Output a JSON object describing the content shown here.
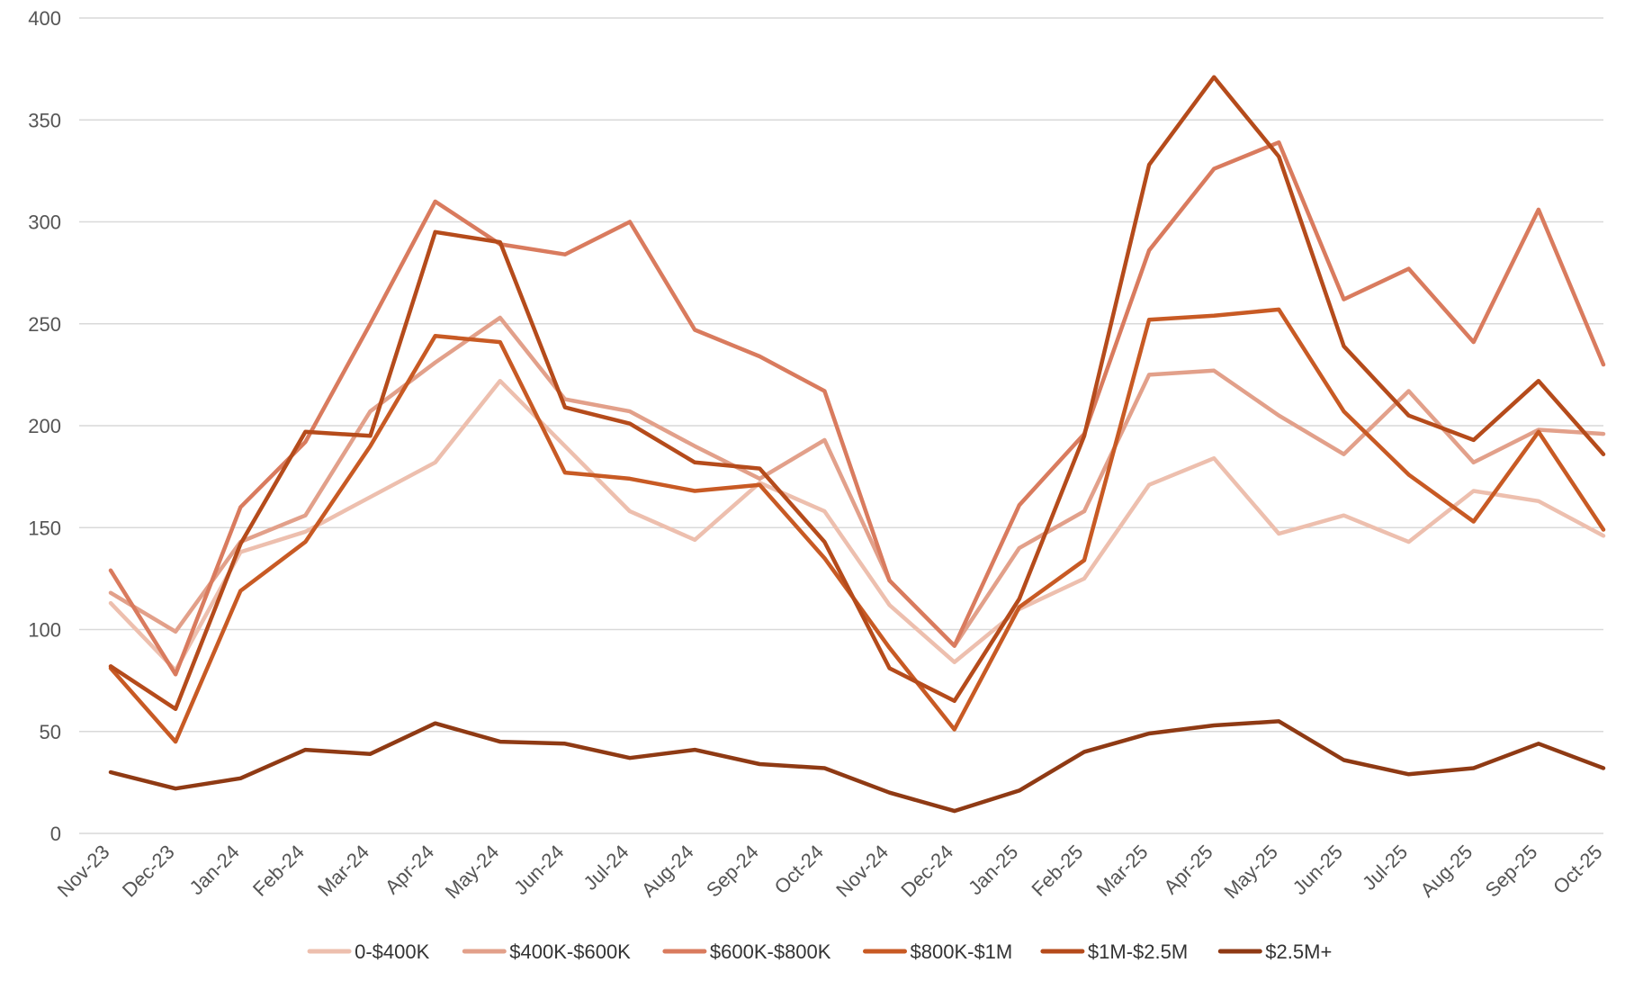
{
  "chart_data": {
    "type": "line",
    "title": "",
    "xlabel": "",
    "ylabel": "",
    "ylim": [
      0,
      400
    ],
    "yticks": [
      0,
      50,
      100,
      150,
      200,
      250,
      300,
      350,
      400
    ],
    "grid": true,
    "legend_position": "bottom",
    "categories": [
      "Nov-23",
      "Dec-23",
      "Jan-24",
      "Feb-24",
      "Mar-24",
      "Apr-24",
      "May-24",
      "Jun-24",
      "Jul-24",
      "Aug-24",
      "Sep-24",
      "Oct-24",
      "Nov-24",
      "Dec-24",
      "Jan-25",
      "Feb-25",
      "Mar-25",
      "Apr-25",
      "May-25",
      "Jun-25",
      "Jul-25",
      "Aug-25",
      "Sep-25",
      "Oct-25"
    ],
    "series": [
      {
        "name": "0-$400K",
        "color": "#edbfae",
        "values": [
          113,
          80,
          138,
          148,
          165,
          182,
          222,
          190,
          158,
          144,
          172,
          158,
          112,
          84,
          110,
          125,
          171,
          184,
          147,
          156,
          143,
          168,
          163,
          146
        ]
      },
      {
        "name": "$400K-$600K",
        "color": "#e2a08a",
        "values": [
          118,
          99,
          143,
          156,
          207,
          231,
          253,
          213,
          207,
          190,
          174,
          193,
          124,
          92,
          140,
          158,
          225,
          227,
          205,
          186,
          217,
          182,
          198,
          196
        ]
      },
      {
        "name": "$600K-$800K",
        "color": "#d97b5e",
        "values": [
          129,
          78,
          160,
          192,
          250,
          310,
          289,
          284,
          300,
          247,
          234,
          217,
          124,
          92,
          161,
          196,
          286,
          326,
          339,
          262,
          277,
          241,
          306,
          230
        ]
      },
      {
        "name": "$800K-$1M",
        "color": "#c85a24",
        "values": [
          81,
          45,
          119,
          143,
          190,
          244,
          241,
          177,
          174,
          168,
          171,
          135,
          91,
          51,
          111,
          134,
          252,
          254,
          257,
          207,
          176,
          153,
          197,
          149
        ]
      },
      {
        "name": "$1M-$2.5M",
        "color": "#b54b1b",
        "values": [
          82,
          61,
          142,
          197,
          195,
          295,
          290,
          209,
          201,
          182,
          179,
          143,
          81,
          65,
          115,
          195,
          328,
          371,
          332,
          239,
          205,
          193,
          222,
          186
        ]
      },
      {
        "name": "$2.5M+",
        "color": "#8f3a14",
        "values": [
          30,
          22,
          27,
          41,
          39,
          54,
          45,
          44,
          37,
          41,
          34,
          32,
          20,
          11,
          21,
          40,
          49,
          53,
          55,
          36,
          29,
          32,
          44,
          32
        ]
      }
    ]
  }
}
